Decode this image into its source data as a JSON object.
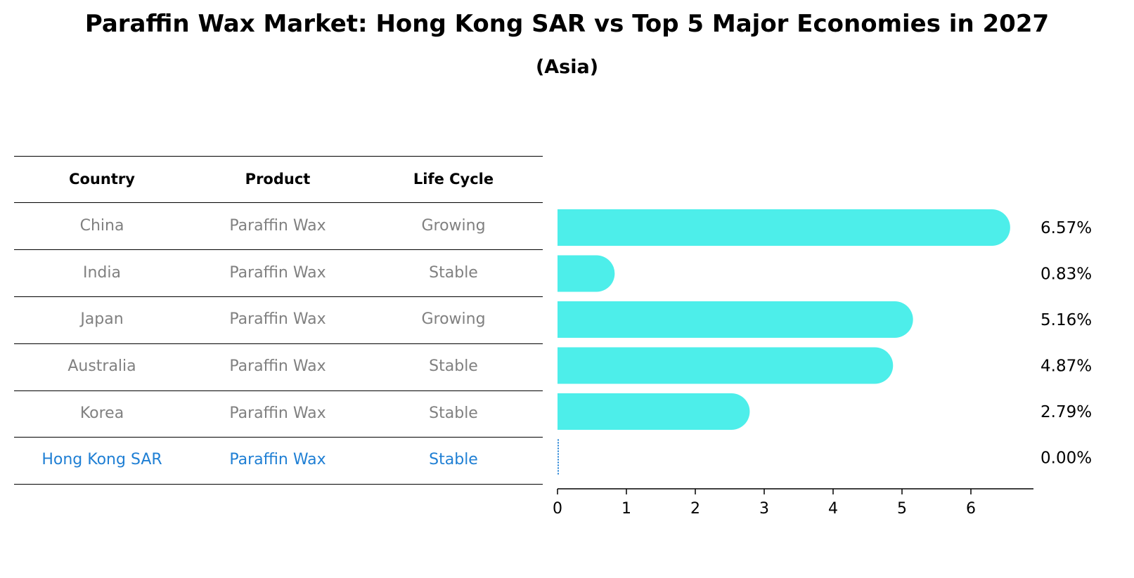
{
  "title": "Paraffin Wax Market: Hong Kong SAR vs Top 5 Major Economies in 2027",
  "subtitle": "(Asia)",
  "table": {
    "headers": [
      "Country",
      "Product",
      "Life Cycle"
    ],
    "rows": [
      [
        "China",
        "Paraffin Wax",
        "Growing"
      ],
      [
        "India",
        "Paraffin Wax",
        "Stable"
      ],
      [
        "Japan",
        "Paraffin Wax",
        "Growing"
      ],
      [
        "Australia",
        "Paraffin Wax",
        "Stable"
      ],
      [
        "Korea",
        "Paraffin Wax",
        "Stable"
      ],
      [
        "Hong Kong SAR",
        "Paraffin Wax",
        "Stable"
      ]
    ],
    "highlight_color": "#1f7fd4"
  },
  "chart_data": {
    "type": "bar",
    "orientation": "horizontal",
    "categories": [
      "China",
      "India",
      "Japan",
      "Australia",
      "Korea",
      "Hong Kong SAR"
    ],
    "values": [
      6.57,
      0.83,
      5.16,
      4.87,
      2.79,
      0.0
    ],
    "value_labels": [
      "6.57%",
      "0.83%",
      "5.16%",
      "4.87%",
      "2.79%",
      "0.00%"
    ],
    "xticks": [
      "0",
      "1",
      "2",
      "3",
      "4",
      "5",
      "6"
    ],
    "xlim": [
      0,
      6.9
    ],
    "bar_color": "#4deeea",
    "highlight_color": "#1f7fd4",
    "grid": false
  }
}
